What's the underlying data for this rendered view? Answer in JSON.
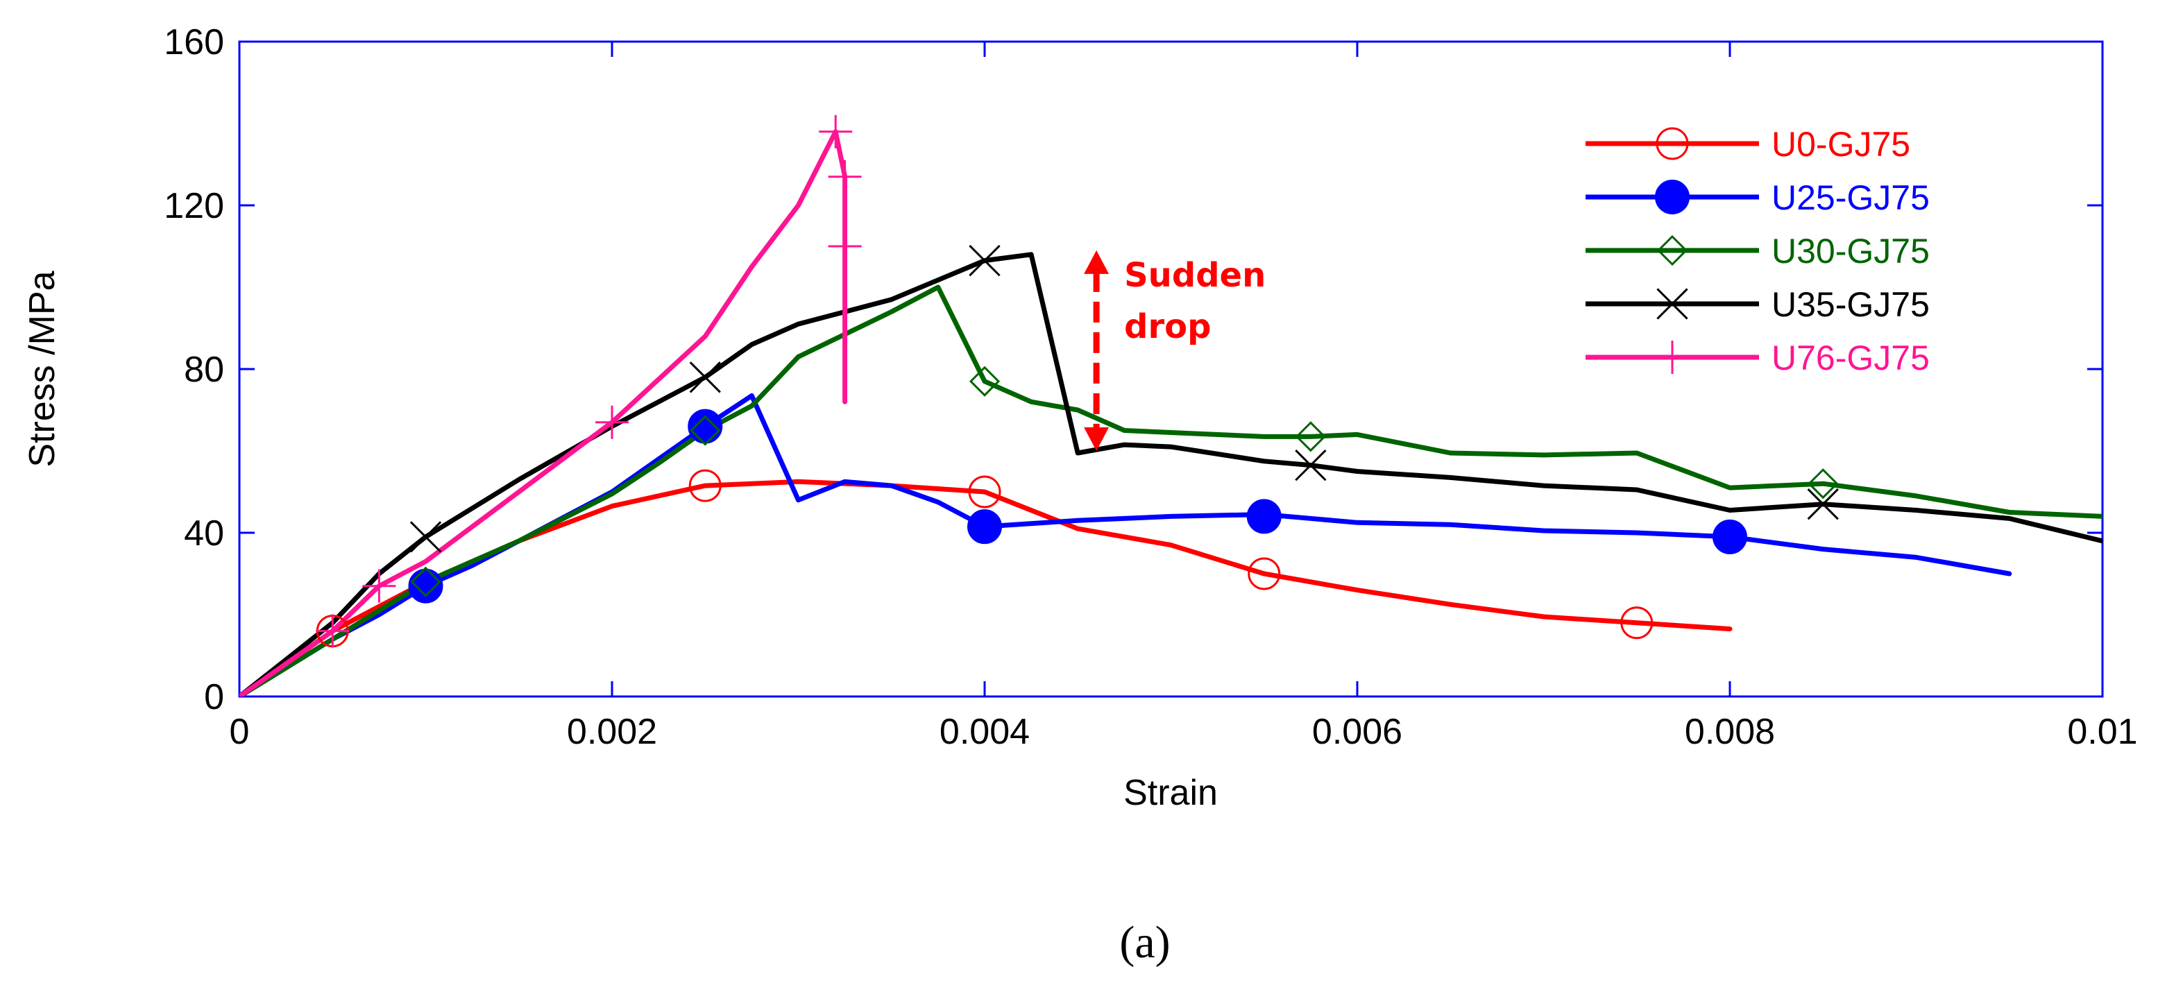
{
  "chart_data": {
    "type": "line",
    "xlabel": "Strain",
    "ylabel": "Stress /MPa",
    "xlim": [
      0,
      0.01
    ],
    "ylim": [
      0,
      160
    ],
    "xticks": [
      0,
      0.002,
      0.004,
      0.006,
      0.008,
      0.01
    ],
    "xtick_labels": [
      "0",
      "0.002",
      "0.004",
      "0.006",
      "0.008",
      "0.01"
    ],
    "yticks": [
      0,
      40,
      80,
      120,
      160
    ],
    "ytick_labels": [
      "0",
      "40",
      "80",
      "120",
      "160"
    ],
    "grid": false,
    "legend_position": "top-right",
    "series": [
      {
        "name": "U0-GJ75",
        "color": "#ff0000",
        "marker": "circle-open",
        "x": [
          0,
          0.0005,
          0.001,
          0.0015,
          0.002,
          0.0025,
          0.003,
          0.0035,
          0.004,
          0.0045,
          0.005,
          0.0055,
          0.006,
          0.0065,
          0.007,
          0.0075,
          0.008
        ],
        "y": [
          0,
          16,
          28,
          38,
          46.5,
          51.5,
          52.5,
          51.5,
          50,
          41,
          37,
          30,
          26,
          22.5,
          19.5,
          18,
          16.5
        ],
        "marker_x": [
          0.0005,
          0.0025,
          0.004,
          0.0055,
          0.0075
        ],
        "marker_y": [
          16,
          51.5,
          50,
          30,
          18
        ]
      },
      {
        "name": "U25-GJ75",
        "color": "#0000ff",
        "marker": "circle-filled",
        "x": [
          0,
          0.0005,
          0.00075,
          0.001,
          0.00125,
          0.0015,
          0.00175,
          0.002,
          0.0025,
          0.00275,
          0.003,
          0.00325,
          0.0035,
          0.00375,
          0.004,
          0.0045,
          0.005,
          0.0055,
          0.006,
          0.0065,
          0.007,
          0.0075,
          0.008,
          0.0085,
          0.009,
          0.0095
        ],
        "y": [
          0,
          14,
          20,
          27,
          32,
          38,
          44,
          50,
          66,
          73.5,
          48,
          52.5,
          51.5,
          47.5,
          41.5,
          43,
          44,
          44.5,
          42.5,
          42,
          40.5,
          40,
          39,
          36,
          34,
          30
        ],
        "marker_x": [
          0.001,
          0.0025,
          0.004,
          0.0055,
          0.008
        ],
        "marker_y": [
          27,
          66,
          41.5,
          44,
          39
        ]
      },
      {
        "name": "U30-GJ75",
        "color": "#006400",
        "marker": "diamond-open",
        "x": [
          0,
          0.0005,
          0.001,
          0.0015,
          0.002,
          0.00225,
          0.0025,
          0.00275,
          0.003,
          0.0035,
          0.00375,
          0.004,
          0.00425,
          0.0045,
          0.00475,
          0.005,
          0.0055,
          0.00575,
          0.006,
          0.0065,
          0.007,
          0.0075,
          0.008,
          0.0085,
          0.009,
          0.0095,
          0.01
        ],
        "y": [
          0,
          14,
          28,
          38,
          49.5,
          57,
          65,
          71,
          83,
          94,
          100,
          77,
          72,
          70,
          65,
          64.5,
          63.5,
          63.5,
          64,
          59.5,
          59,
          59.5,
          51,
          52,
          49,
          45,
          44
        ],
        "marker_x": [
          0.001,
          0.0025,
          0.004,
          0.00575,
          0.0085
        ],
        "marker_y": [
          28,
          65,
          77,
          63.5,
          52
        ]
      },
      {
        "name": "U35-GJ75",
        "color": "#000000",
        "marker": "x",
        "x": [
          0,
          0.0005,
          0.00075,
          0.001,
          0.0015,
          0.002,
          0.0025,
          0.00275,
          0.003,
          0.0035,
          0.004,
          0.00425,
          0.0045,
          0.00475,
          0.005,
          0.0055,
          0.00575,
          0.006,
          0.0065,
          0.007,
          0.0075,
          0.008,
          0.0085,
          0.009,
          0.0095,
          0.01
        ],
        "y": [
          0,
          18,
          30,
          39,
          53,
          66,
          78,
          86,
          91,
          97,
          106.5,
          108,
          59.5,
          61.5,
          61,
          57.5,
          56.5,
          55,
          53.5,
          51.5,
          50.5,
          45.5,
          47,
          45.5,
          43.5,
          38
        ],
        "marker_x": [
          0.001,
          0.0025,
          0.004,
          0.00575,
          0.0085
        ],
        "marker_y": [
          39,
          78,
          106.5,
          56.5,
          47
        ]
      },
      {
        "name": "U76-GJ75",
        "color": "#ff1493",
        "marker": "plus",
        "x": [
          0,
          0.0005,
          0.00075,
          0.001,
          0.0015,
          0.002,
          0.0025,
          0.00275,
          0.003,
          0.0032,
          0.00325,
          0.00325
        ],
        "y": [
          0,
          16,
          27,
          33,
          50,
          67,
          88,
          105,
          120,
          138,
          127,
          72
        ],
        "marker_x": [
          0.0005,
          0.00075,
          0.002,
          0.0032,
          0.00325,
          0.00325
        ],
        "marker_y": [
          16,
          27,
          67,
          138,
          127,
          110
        ]
      }
    ],
    "annotations": [
      {
        "text_line1": "Sudden",
        "text_line2": "drop",
        "color": "#ff0000",
        "x": 0.0046,
        "y_from": 60,
        "y_to": 109
      }
    ]
  },
  "caption": "(a)"
}
